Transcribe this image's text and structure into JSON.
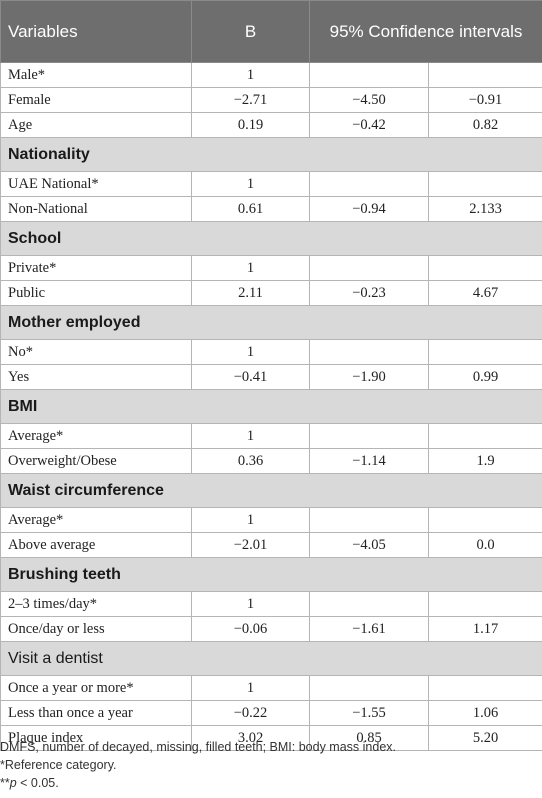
{
  "header": {
    "col_variables": "Variables",
    "col_b": "B",
    "col_ci": "95% Confidence intervals"
  },
  "rows": [
    {
      "type": "data",
      "label": "Male*",
      "b": "1",
      "lo": "",
      "hi": ""
    },
    {
      "type": "data",
      "label": "Female",
      "b": "−2.71",
      "lo": "−4.50",
      "hi": "−0.91"
    },
    {
      "type": "data",
      "label": "Age",
      "b": "0.19",
      "lo": "−0.42",
      "hi": "0.82"
    },
    {
      "type": "section",
      "label": "Nationality"
    },
    {
      "type": "data",
      "label": "UAE National*",
      "b": "1",
      "lo": "",
      "hi": ""
    },
    {
      "type": "data",
      "label": "Non-National",
      "b": "0.61",
      "lo": "−0.94",
      "hi": "2.133"
    },
    {
      "type": "section",
      "label": "School"
    },
    {
      "type": "data",
      "label": "Private*",
      "b": "1",
      "lo": "",
      "hi": ""
    },
    {
      "type": "data",
      "label": "Public",
      "b": "2.11",
      "lo": "−0.23",
      "hi": "4.67"
    },
    {
      "type": "section",
      "label": "Mother employed"
    },
    {
      "type": "data",
      "label": "No*",
      "b": "1",
      "lo": "",
      "hi": ""
    },
    {
      "type": "data",
      "label": "Yes",
      "b": "−0.41",
      "lo": "−1.90",
      "hi": "0.99"
    },
    {
      "type": "section",
      "label": "BMI"
    },
    {
      "type": "data",
      "label": "Average*",
      "b": "1",
      "lo": "",
      "hi": ""
    },
    {
      "type": "data",
      "label": "Overweight/Obese",
      "b": "0.36",
      "lo": "−1.14",
      "hi": "1.9"
    },
    {
      "type": "section",
      "label": "Waist circumference"
    },
    {
      "type": "data",
      "label": "Average*",
      "b": "1",
      "lo": "",
      "hi": ""
    },
    {
      "type": "data",
      "label": "Above average",
      "b": "−2.01",
      "lo": "−4.05",
      "hi": "0.0"
    },
    {
      "type": "section",
      "label": "Brushing teeth"
    },
    {
      "type": "data",
      "label": "2–3 times/day*",
      "b": "1",
      "lo": "",
      "hi": ""
    },
    {
      "type": "data",
      "label": "Once/day or less",
      "b": "−0.06",
      "lo": "−1.61",
      "hi": "1.17"
    },
    {
      "type": "section-light",
      "label": "Visit a dentist"
    },
    {
      "type": "data",
      "label": "Once a year or more*",
      "b": "1",
      "lo": "",
      "hi": ""
    },
    {
      "type": "data",
      "label": "Less than once a year",
      "b": "−0.22",
      "lo": "−1.55",
      "hi": "1.06"
    },
    {
      "type": "data",
      "label": "Plaque index",
      "b": "3.02",
      "lo": "0.85",
      "hi": "5.20"
    }
  ],
  "notes": {
    "line1": "DMFS, number of decayed, missing, filled teeth; BMI: body mass index.",
    "line2": "*Reference category.",
    "line3_prefix": "**",
    "line3_p": "p",
    "line3_suffix": " < 0.05."
  }
}
